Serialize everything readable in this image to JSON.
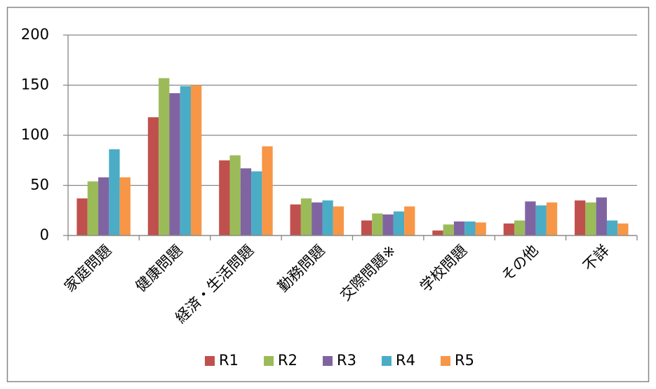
{
  "chart_data": {
    "type": "bar",
    "categories": [
      "家庭問題",
      "健康問題",
      "経済・生活問題",
      "勤務問題",
      "交際問題※",
      "学校問題",
      "その他",
      "不詳"
    ],
    "series": [
      {
        "name": "R1",
        "color": "#c0504d",
        "values": [
          37,
          118,
          75,
          31,
          15,
          5,
          12,
          35
        ]
      },
      {
        "name": "R2",
        "color": "#9bbb59",
        "values": [
          54,
          157,
          80,
          37,
          22,
          11,
          15,
          33
        ]
      },
      {
        "name": "R3",
        "color": "#8064a2",
        "values": [
          58,
          142,
          67,
          33,
          21,
          14,
          34,
          38
        ]
      },
      {
        "name": "R4",
        "color": "#4bacc6",
        "values": [
          86,
          149,
          64,
          35,
          24,
          14,
          30,
          15
        ]
      },
      {
        "name": "R5",
        "color": "#f79646",
        "values": [
          58,
          150,
          89,
          29,
          29,
          13,
          33,
          12
        ]
      }
    ],
    "ylim": [
      0,
      200
    ],
    "yticks": [
      0,
      50,
      100,
      150,
      200
    ],
    "grid": true,
    "legend": "bottom"
  }
}
